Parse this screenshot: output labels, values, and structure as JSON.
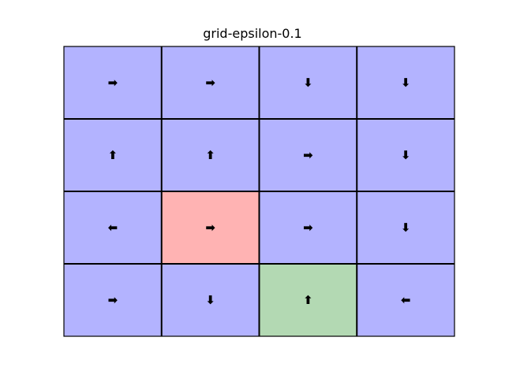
{
  "title": "grid-epsilon-0.1",
  "colors": {
    "normal": "#b3b3ff",
    "start": "#ffb3b3",
    "goal": "#b3d9b3",
    "line": "#000000"
  },
  "grid": {
    "rows": 4,
    "cols": 4,
    "cells": [
      [
        {
          "arrow": "➡",
          "type": "normal"
        },
        {
          "arrow": "➡",
          "type": "normal"
        },
        {
          "arrow": "⬇",
          "type": "normal"
        },
        {
          "arrow": "⬇",
          "type": "normal"
        }
      ],
      [
        {
          "arrow": "⬆",
          "type": "normal"
        },
        {
          "arrow": "⬆",
          "type": "normal"
        },
        {
          "arrow": "➡",
          "type": "normal"
        },
        {
          "arrow": "⬇",
          "type": "normal"
        }
      ],
      [
        {
          "arrow": "⬅",
          "type": "normal"
        },
        {
          "arrow": "➡",
          "type": "start"
        },
        {
          "arrow": "➡",
          "type": "normal"
        },
        {
          "arrow": "⬇",
          "type": "normal"
        }
      ],
      [
        {
          "arrow": "➡",
          "type": "normal"
        },
        {
          "arrow": "⬇",
          "type": "normal"
        },
        {
          "arrow": "⬆",
          "type": "goal"
        },
        {
          "arrow": "⬅",
          "type": "normal"
        }
      ]
    ]
  }
}
